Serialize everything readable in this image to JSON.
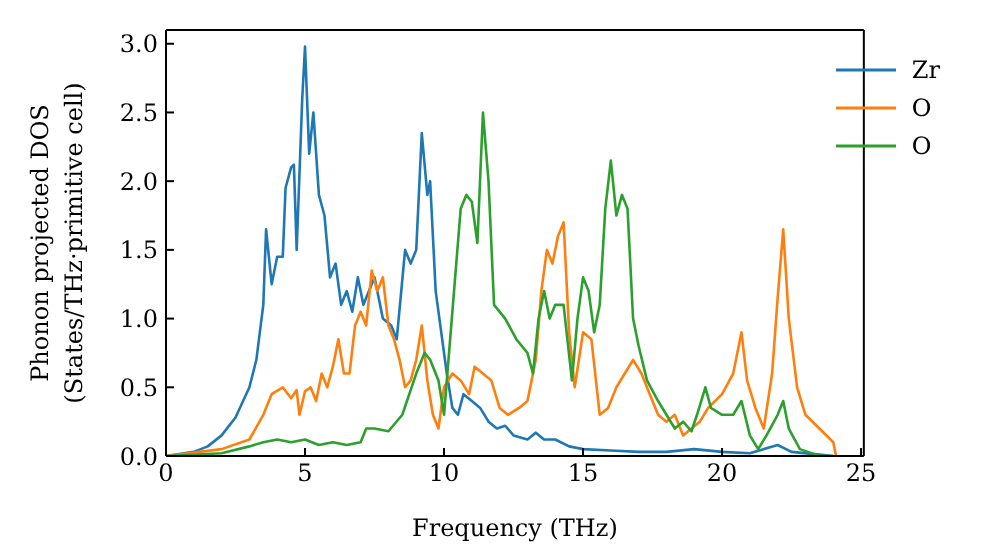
{
  "chart_data": {
    "type": "line",
    "xlabel": "Frequency (THz)",
    "ylabel": "Phonon projected DOS (States/THz·primitive cell)",
    "xlim": [
      0,
      25.1
    ],
    "ylim": [
      0,
      3.1
    ],
    "xticks": [
      0,
      5,
      10,
      15,
      20,
      25
    ],
    "yticks": [
      {
        "value": 0,
        "label": "0.0"
      },
      0.5,
      {
        "value": 1,
        "label": "1.0"
      },
      1.5,
      {
        "value": 2,
        "label": "2.0"
      },
      2.5,
      {
        "value": 3,
        "label": "3.0"
      }
    ],
    "grid": false,
    "legend": "top right",
    "marker": "none",
    "line_style": "solid",
    "series": [
      {
        "name": "Zr",
        "color": "#1f77b4",
        "x": [
          0,
          1,
          1.5,
          2,
          2.5,
          3,
          3.25,
          3.5,
          3.6,
          3.8,
          4,
          4.2,
          4.3,
          4.5,
          4.6,
          4.7,
          4.9,
          5,
          5.15,
          5.3,
          5.5,
          5.7,
          5.9,
          6.1,
          6.3,
          6.5,
          6.7,
          6.9,
          7.1,
          7.3,
          7.5,
          7.8,
          8.1,
          8.3,
          8.6,
          8.8,
          9,
          9.2,
          9.4,
          9.5,
          9.7,
          9.9,
          10.1,
          10.3,
          10.5,
          10.7,
          11,
          11.3,
          11.6,
          11.9,
          12.2,
          12.5,
          13,
          13.3,
          13.6,
          14,
          14.5,
          15,
          16,
          17,
          18,
          19,
          20,
          21,
          22,
          22.5,
          23.5,
          24
        ],
        "values": [
          0,
          0.03,
          0.07,
          0.15,
          0.28,
          0.5,
          0.7,
          1.1,
          1.65,
          1.25,
          1.45,
          1.45,
          1.95,
          2.1,
          2.12,
          1.5,
          2.6,
          2.98,
          2.2,
          2.5,
          1.9,
          1.75,
          1.3,
          1.4,
          1.1,
          1.2,
          1.05,
          1.3,
          1.1,
          1.2,
          1.3,
          1,
          0.95,
          0.85,
          1.5,
          1.4,
          1.5,
          2.35,
          1.9,
          2,
          1.2,
          0.9,
          0.6,
          0.35,
          0.3,
          0.45,
          0.4,
          0.35,
          0.25,
          0.2,
          0.22,
          0.15,
          0.12,
          0.17,
          0.12,
          0.12,
          0.07,
          0.05,
          0.04,
          0.03,
          0.03,
          0.05,
          0.03,
          0.02,
          0.08,
          0.03,
          0.01,
          0
        ]
      },
      {
        "name": "O",
        "color": "#ff7f0e",
        "x": [
          0,
          2,
          3,
          3.5,
          3.8,
          4.2,
          4.5,
          4.7,
          4.8,
          5,
          5.2,
          5.4,
          5.6,
          5.8,
          6,
          6.2,
          6.4,
          6.6,
          6.8,
          7,
          7.2,
          7.4,
          7.6,
          7.8,
          8,
          8.2,
          8.4,
          8.6,
          8.8,
          9,
          9.2,
          9.4,
          9.6,
          9.8,
          10,
          10.3,
          10.6,
          10.9,
          11.1,
          11.4,
          11.7,
          12,
          12.3,
          12.7,
          13,
          13.3,
          13.5,
          13.7,
          13.9,
          14.1,
          14.3,
          14.5,
          14.7,
          15,
          15.3,
          15.6,
          15.9,
          16.2,
          16.5,
          16.8,
          17.1,
          17.4,
          17.7,
          18,
          18.3,
          18.6,
          18.9,
          19.2,
          19.5,
          20,
          20.4,
          20.7,
          20.9,
          21.2,
          21.5,
          21.8,
          22,
          22.2,
          22.4,
          22.7,
          23,
          23.5,
          24,
          24.1
        ],
        "values": [
          0,
          0.05,
          0.12,
          0.3,
          0.45,
          0.5,
          0.42,
          0.48,
          0.3,
          0.47,
          0.5,
          0.4,
          0.6,
          0.5,
          0.65,
          0.85,
          0.6,
          0.6,
          0.95,
          1.05,
          0.95,
          1.35,
          1.2,
          1.3,
          0.95,
          0.85,
          0.7,
          0.5,
          0.55,
          0.7,
          0.95,
          0.55,
          0.3,
          0.2,
          0.5,
          0.6,
          0.55,
          0.45,
          0.65,
          0.6,
          0.55,
          0.35,
          0.3,
          0.35,
          0.4,
          0.7,
          1.2,
          1.5,
          1.4,
          1.6,
          1.7,
          0.9,
          0.5,
          0.9,
          0.85,
          0.3,
          0.35,
          0.5,
          0.6,
          0.7,
          0.6,
          0.45,
          0.3,
          0.25,
          0.3,
          0.15,
          0.2,
          0.25,
          0.35,
          0.45,
          0.6,
          0.9,
          0.55,
          0.35,
          0.2,
          0.6,
          1.15,
          1.65,
          1,
          0.5,
          0.3,
          0.2,
          0.1,
          0
        ]
      },
      {
        "name": "O",
        "color": "#2ca02c",
        "x": [
          0,
          2,
          3,
          3.5,
          4,
          4.5,
          5,
          5.5,
          6,
          6.5,
          7,
          7.2,
          7.5,
          8,
          8.5,
          9,
          9.3,
          9.5,
          9.8,
          10,
          10.2,
          10.4,
          10.6,
          10.8,
          11,
          11.2,
          11.4,
          11.6,
          11.8,
          12.2,
          12.6,
          13,
          13.2,
          13.4,
          13.6,
          13.8,
          14,
          14.3,
          14.6,
          14.8,
          15,
          15.2,
          15.4,
          15.6,
          15.8,
          16,
          16.2,
          16.4,
          16.6,
          16.8,
          17,
          17.3,
          17.7,
          18,
          18.3,
          18.6,
          18.9,
          19.1,
          19.4,
          19.6,
          20,
          20.4,
          20.7,
          21,
          21.3,
          21.6,
          22,
          22.2,
          22.4,
          22.8,
          23.5,
          24
        ],
        "values": [
          0,
          0.02,
          0.07,
          0.1,
          0.12,
          0.1,
          0.12,
          0.08,
          0.1,
          0.08,
          0.1,
          0.2,
          0.2,
          0.18,
          0.3,
          0.6,
          0.75,
          0.7,
          0.55,
          0.3,
          0.8,
          1.3,
          1.8,
          1.9,
          1.85,
          1.55,
          2.5,
          2,
          1.1,
          1,
          0.85,
          0.75,
          0.6,
          1,
          1.2,
          1,
          1.1,
          1.1,
          0.55,
          1,
          1.3,
          1.2,
          0.9,
          1.1,
          1.8,
          2.15,
          1.75,
          1.9,
          1.8,
          1,
          0.8,
          0.55,
          0.4,
          0.3,
          0.2,
          0.25,
          0.18,
          0.3,
          0.5,
          0.35,
          0.3,
          0.3,
          0.4,
          0.15,
          0.05,
          0.15,
          0.3,
          0.4,
          0.2,
          0.05,
          0,
          0
        ]
      }
    ]
  }
}
